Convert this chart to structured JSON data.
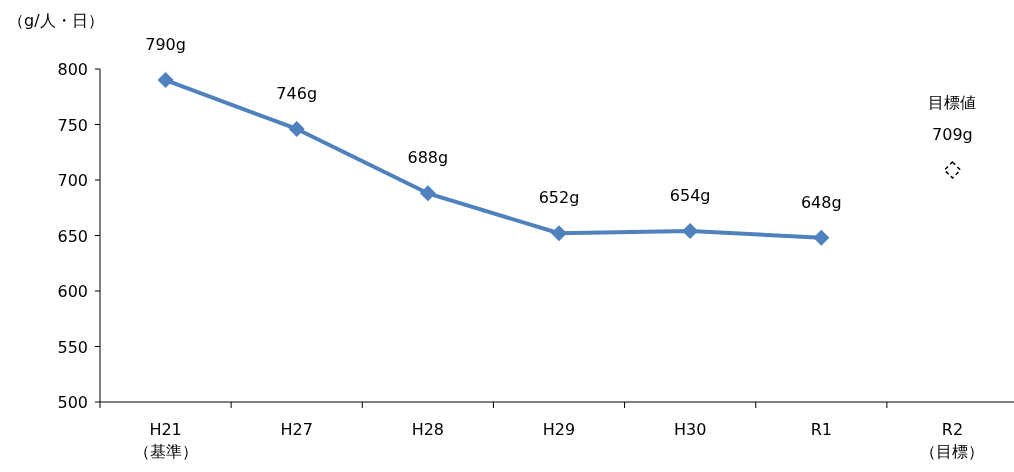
{
  "chart_data": {
    "type": "line",
    "ylabel": "（g/人・日）",
    "categories": [
      "H21\n（基準）",
      "H27",
      "H28",
      "H29",
      "H30",
      "R1",
      "R2\n（目標）"
    ],
    "ylim": [
      500,
      800
    ],
    "yticks": [
      500,
      550,
      600,
      650,
      700,
      750,
      800
    ],
    "grid": false,
    "series": [
      {
        "color": "#4f81bd",
        "marker": "diamond",
        "line_style": "solid",
        "values": [
          790,
          746,
          688,
          652,
          654,
          648,
          null
        ],
        "value_labels": [
          "790g",
          "746g",
          "688g",
          "652g",
          "654g",
          "648g",
          null
        ]
      },
      {
        "type": "scatter",
        "color": "#000000",
        "marker": "diamond",
        "line_style": "dashed",
        "values": [
          null,
          null,
          null,
          null,
          null,
          null,
          709
        ],
        "value_labels": [
          null,
          null,
          null,
          null,
          null,
          null,
          "709g"
        ]
      }
    ],
    "annotations": [
      "目標値"
    ]
  }
}
